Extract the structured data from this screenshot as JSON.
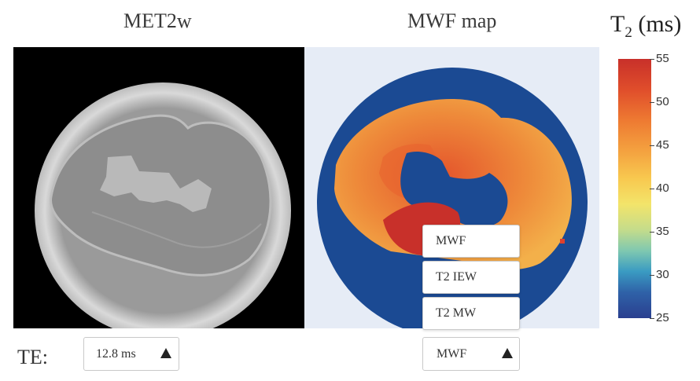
{
  "panels": {
    "met_title": "MET2w",
    "mwf_title": "MWF map"
  },
  "colorbar": {
    "title_main": "T",
    "title_sub": "2",
    "title_unit": " (ms)",
    "ticks": [
      "55",
      "50",
      "45",
      "40",
      "35",
      "30",
      "25"
    ],
    "min": 25,
    "max": 55,
    "colors": {
      "low": "#2a3f8f",
      "mid": "#f3e46a",
      "high": "#c8302a"
    }
  },
  "controls": {
    "te_label": "TE:",
    "te_value": "12.8 ms",
    "map_value": "MWF",
    "map_options": [
      "MWF",
      "T2 IEW",
      "T2 MW"
    ]
  }
}
